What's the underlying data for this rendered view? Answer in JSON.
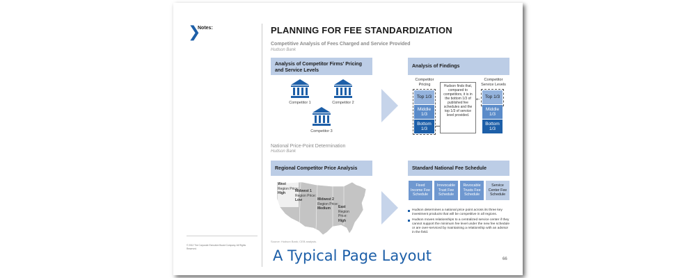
{
  "notes_label": "Notes:",
  "title": "PLANNING FOR FEE STANDARDIZATION",
  "section1": {
    "title": "Competitive Analysis of Fees Charged and Service Provided",
    "subtitle": "Hudson Bank"
  },
  "panel_left": {
    "header": "Analysis of Competitor Firms' Pricing and Service Levels",
    "competitors": [
      "Competitor 1",
      "Competitor 2",
      "Competitor 3"
    ]
  },
  "panel_right": {
    "header": "Analysis of Findings",
    "pricing_label": "Competitor Pricing",
    "service_label": "Competitor Service Levels",
    "tiers": [
      "Top 1/3",
      "Middle 1/3",
      "Bottom 1/3"
    ],
    "finding_text": "Hudson finds that, compared to competitors, it is in the bottom 1/3 of published fee schedules and the top 1/3 of service level provided."
  },
  "section2": {
    "title": "National Price-Point Determination",
    "subtitle": "Hudson Bank"
  },
  "panel_map": {
    "header": "Regional Competitor Price Analysis",
    "regions": [
      {
        "name": "West",
        "label": "Region Price:",
        "value": "High"
      },
      {
        "name": "Midwest 1",
        "label": "Region Price:",
        "value": "Low"
      },
      {
        "name": "Midwest 2",
        "label": "Region Price:",
        "value": "Medium"
      },
      {
        "name": "East",
        "label": "Region Price:",
        "value": "High"
      }
    ]
  },
  "panel_schedule": {
    "header": "Standard National Fee Schedule",
    "cards": [
      "Fixed Income Fee Schedule",
      "Irrevocable Trust Fee Schedule",
      "Revocable Trusts Fee Schedule",
      "Service Center Fee Schedule"
    ],
    "bullets": [
      "Hudson determines a national price point across its three key investment products that will be competitive in all regions.",
      "Hudson moves relationships to a centralized service center if they cannot support the minimum fee level under the new fee schedule or are over-serviced by maintaining a relationship with an advisor in the field."
    ]
  },
  "source": "Source: Hudson Bank; CEB analysis.",
  "copyright": "© 2012 The Corporate Executive Board Company. All Rights Reserved.",
  "page_number": "66",
  "caption": "A Typical Page Layout",
  "colors": {
    "accent": "#1d5fa8",
    "band": "#bccde6",
    "tier_light": "#94b3dd",
    "tier_mid": "#5a8bc9",
    "tier_dark": "#1d5fa8"
  }
}
